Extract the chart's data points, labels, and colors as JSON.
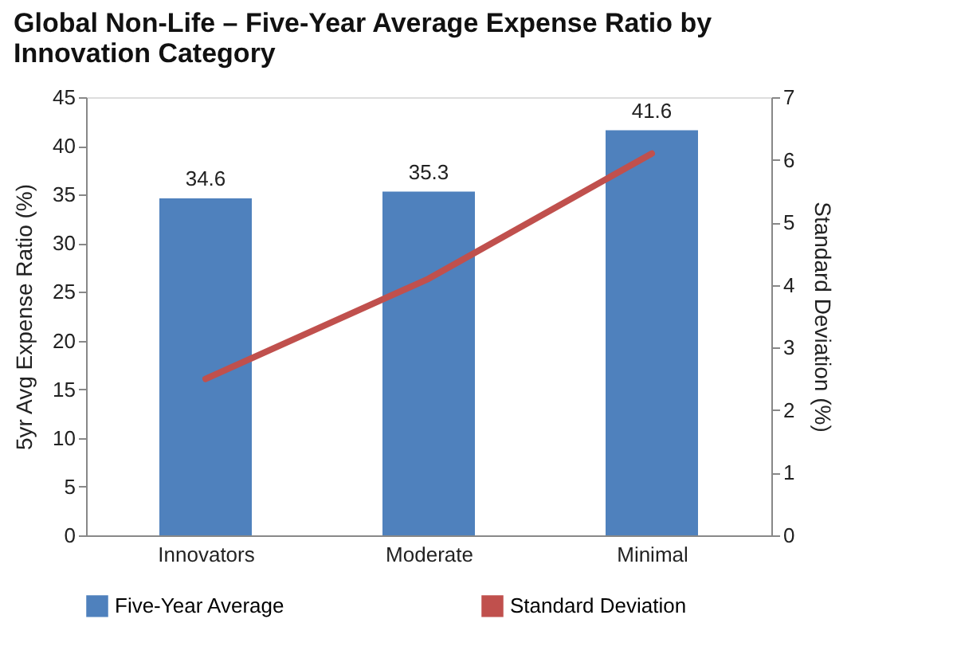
{
  "chart_data": {
    "type": "bar",
    "title": "Global Non-Life – Five-Year Average Expense Ratio by Innovation Category",
    "categories": [
      "Innovators",
      "Moderate",
      "Minimal"
    ],
    "series": [
      {
        "name": "Five-Year Average",
        "color": "#4f81bd",
        "values": [
          34.6,
          35.3,
          41.6
        ],
        "value_labels": [
          "34.6",
          "35.3",
          "41.6"
        ]
      },
      {
        "name": "Standard Deviation",
        "color": "#c0504d",
        "type": "line",
        "axis": "y2",
        "values": [
          2.5,
          4.1,
          6.1
        ]
      }
    ],
    "ylabel": "5yr Avg Expense Ratio (%)",
    "y2label": "Standard Deviation (%)",
    "ylim": [
      0,
      45
    ],
    "yticks": [
      0,
      5,
      10,
      15,
      20,
      25,
      30,
      35,
      40,
      45
    ],
    "y2lim": [
      0,
      7
    ],
    "y2ticks": [
      0,
      1,
      2,
      3,
      4,
      5,
      6,
      7
    ],
    "grid": false,
    "legend": "bottom"
  }
}
